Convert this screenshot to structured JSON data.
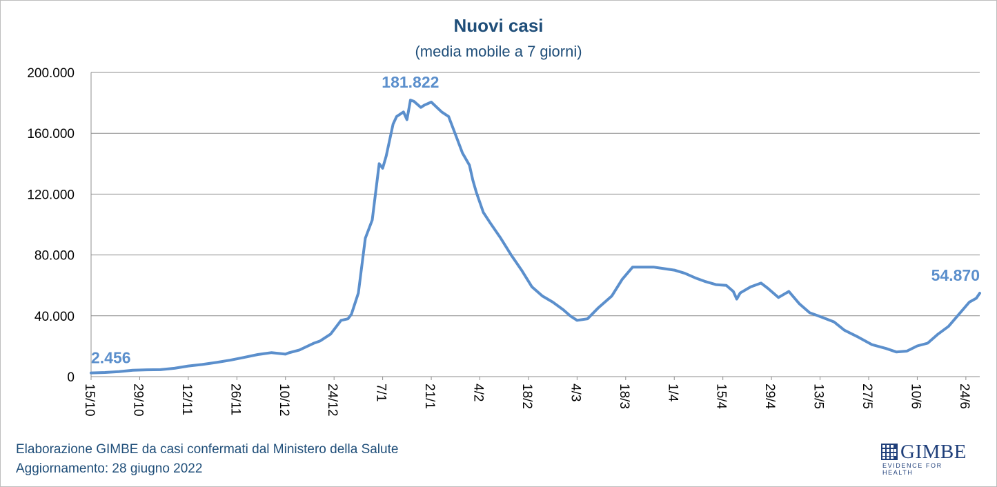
{
  "chart_data": {
    "type": "line",
    "title": "Nuovi casi",
    "subtitle": "(media mobile a 7 giorni)",
    "xlabel": "",
    "ylabel": "",
    "ylim": [
      0,
      200000
    ],
    "yticks": [
      0,
      40000,
      80000,
      120000,
      160000,
      200000
    ],
    "ytick_labels": [
      "0",
      "40.000",
      "80.000",
      "120.000",
      "160.000",
      "200.000"
    ],
    "x_range": [
      "2021-10-15",
      "2022-06-28"
    ],
    "xticks": [
      "15/10",
      "29/10",
      "12/11",
      "26/11",
      "10/12",
      "24/12",
      "7/1",
      "21/1",
      "4/2",
      "18/2",
      "4/3",
      "18/3",
      "1/4",
      "15/4",
      "29/4",
      "13/5",
      "27/5",
      "10/6",
      "24/6"
    ],
    "grid": "horizontal",
    "legend": "none",
    "line_color": "#5b8fcc",
    "series": [
      {
        "x": [
          "2021-10-15",
          "2021-10-19",
          "2021-10-23",
          "2021-10-27",
          "2021-10-31",
          "2021-11-04",
          "2021-11-08",
          "2021-11-12",
          "2021-11-16",
          "2021-11-20",
          "2021-11-24",
          "2021-11-28",
          "2021-12-02",
          "2021-12-06",
          "2021-12-10",
          "2021-12-11",
          "2021-12-14",
          "2021-12-18",
          "2021-12-20",
          "2021-12-23",
          "2021-12-26",
          "2021-12-28",
          "2021-12-29",
          "2021-12-31",
          "2022-01-02",
          "2022-01-04",
          "2022-01-06",
          "2022-01-07",
          "2022-01-08",
          "2022-01-10",
          "2022-01-11",
          "2022-01-13",
          "2022-01-14",
          "2022-01-15",
          "2022-01-16",
          "2022-01-18",
          "2022-01-19",
          "2022-01-21",
          "2022-01-24",
          "2022-01-26",
          "2022-01-28",
          "2022-01-30",
          "2022-02-01",
          "2022-02-02",
          "2022-02-03",
          "2022-02-05",
          "2022-02-07",
          "2022-02-10",
          "2022-02-13",
          "2022-02-16",
          "2022-02-19",
          "2022-02-22",
          "2022-02-25",
          "2022-02-28",
          "2022-03-02",
          "2022-03-04",
          "2022-03-07",
          "2022-03-10",
          "2022-03-14",
          "2022-03-17",
          "2022-03-20",
          "2022-03-23",
          "2022-03-26",
          "2022-03-29",
          "2022-04-01",
          "2022-04-04",
          "2022-04-07",
          "2022-04-10",
          "2022-04-13",
          "2022-04-16",
          "2022-04-18",
          "2022-04-19",
          "2022-04-20",
          "2022-04-23",
          "2022-04-26",
          "2022-04-28",
          "2022-04-30",
          "2022-05-01",
          "2022-05-04",
          "2022-05-07",
          "2022-05-10",
          "2022-05-13",
          "2022-05-17",
          "2022-05-20",
          "2022-05-24",
          "2022-05-28",
          "2022-06-01",
          "2022-06-04",
          "2022-06-07",
          "2022-06-10",
          "2022-06-13",
          "2022-06-16",
          "2022-06-19",
          "2022-06-22",
          "2022-06-25",
          "2022-06-27",
          "2022-06-28"
        ],
        "y": [
          2456,
          2700,
          3300,
          4200,
          4500,
          4600,
          5500,
          7000,
          8000,
          9300,
          10800,
          12600,
          14500,
          15800,
          14800,
          15700,
          17500,
          21800,
          23500,
          28000,
          37000,
          38000,
          41000,
          55000,
          91000,
          103000,
          140000,
          137000,
          145000,
          166000,
          171000,
          174000,
          169000,
          181822,
          181000,
          177000,
          178500,
          180500,
          174000,
          171000,
          159000,
          147000,
          139000,
          129000,
          121000,
          108000,
          101000,
          91000,
          80000,
          70000,
          59000,
          53000,
          49000,
          44000,
          40000,
          37000,
          38000,
          45000,
          53000,
          64000,
          72000,
          72000,
          72000,
          71000,
          70000,
          68000,
          65000,
          62500,
          60500,
          60000,
          56000,
          51000,
          55000,
          59000,
          61500,
          58000,
          54000,
          52000,
          56000,
          48000,
          42000,
          39500,
          36000,
          30500,
          26000,
          21000,
          18500,
          16200,
          16800,
          20200,
          22000,
          28000,
          33000,
          41000,
          49000,
          51500,
          54870
        ]
      }
    ],
    "annotations": [
      {
        "label": "2.456",
        "x": "2021-10-15",
        "y": 2456
      },
      {
        "label": "181.822",
        "x": "2022-01-15",
        "y": 181822
      },
      {
        "label": "54.870",
        "x": "2022-06-28",
        "y": 54870
      }
    ]
  },
  "footer": {
    "line1": "Elaborazione GIMBE da casi confermati dal Ministero della Salute",
    "line2": "Aggiornamento: 28 giugno 2022"
  },
  "logo": {
    "name": "GIMBE",
    "tagline": "EVIDENCE FOR HEALTH",
    "color": "#1f3f7a"
  }
}
